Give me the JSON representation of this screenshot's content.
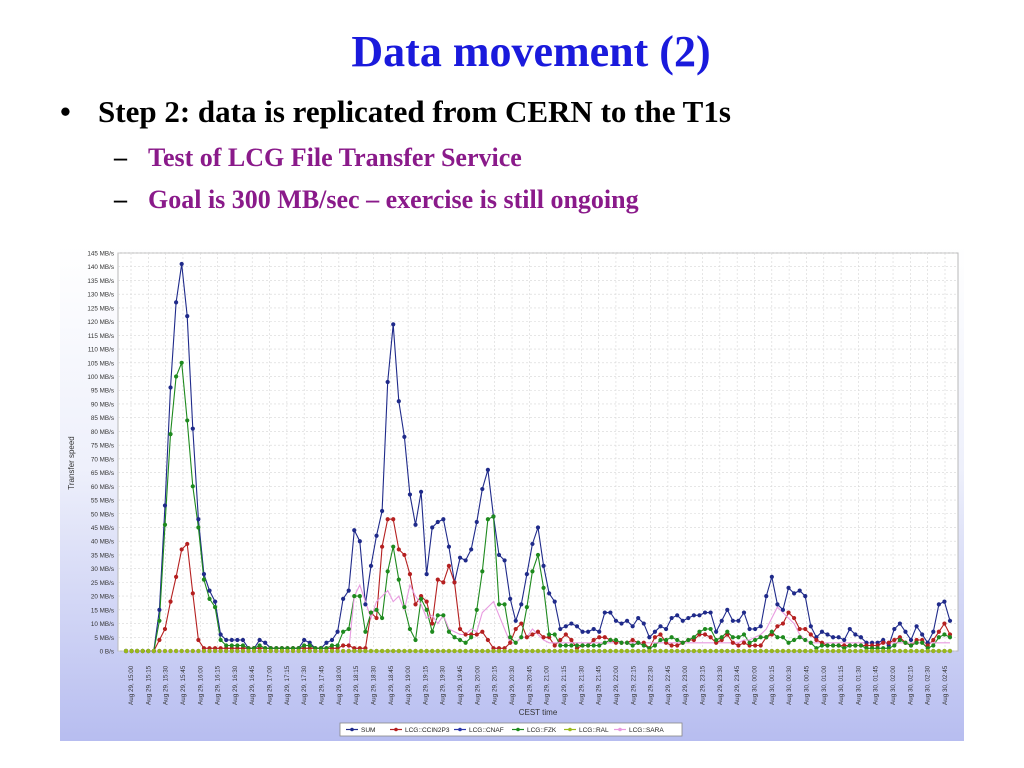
{
  "slide": {
    "title": "Data movement (2)",
    "bullet_marker": "•",
    "bullet": "Step 2: data is replicated from CERN to the T1s",
    "sub_marker": "–",
    "sub_items": [
      "Test of LCG File Transfer Service",
      "Goal is 300 MB/sec – exercise is still ongoing"
    ]
  },
  "chart_data": {
    "type": "line",
    "ylabel": "Transfer speed",
    "xlabel": "CEST time",
    "ylim": [
      0,
      145
    ],
    "y_unit": "MB/s",
    "y_ticks": [
      0,
      5,
      10,
      15,
      20,
      25,
      30,
      35,
      40,
      45,
      50,
      55,
      60,
      65,
      70,
      75,
      80,
      85,
      90,
      95,
      100,
      105,
      110,
      115,
      120,
      125,
      130,
      135,
      140,
      145
    ],
    "y_tick_labels": [
      "0 B/s",
      "5 MB/s",
      "10 MB/s",
      "15 MB/s",
      "20 MB/s",
      "25 MB/s",
      "30 MB/s",
      "35 MB/s",
      "40 MB/s",
      "45 MB/s",
      "50 MB/s",
      "55 MB/s",
      "60 MB/s",
      "65 MB/s",
      "70 MB/s",
      "75 MB/s",
      "80 MB/s",
      "85 MB/s",
      "90 MB/s",
      "95 MB/s",
      "100 MB/s",
      "105 MB/s",
      "110 MB/s",
      "115 MB/s",
      "120 MB/s",
      "125 MB/s",
      "130 MB/s",
      "135 MB/s",
      "140 MB/s",
      "145 MB/s"
    ],
    "x_tick_labels": [
      "Aug 29, 15:00",
      "Aug 29, 15:15",
      "Aug 29, 15:30",
      "Aug 29, 15:45",
      "Aug 29, 16:00",
      "Aug 29, 16:15",
      "Aug 29, 16:30",
      "Aug 29, 16:45",
      "Aug 29, 17:00",
      "Aug 29, 17:15",
      "Aug 29, 17:30",
      "Aug 29, 17:45",
      "Aug 29, 18:00",
      "Aug 29, 18:15",
      "Aug 29, 18:30",
      "Aug 29, 18:45",
      "Aug 29, 19:00",
      "Aug 29, 19:15",
      "Aug 29, 19:30",
      "Aug 29, 19:45",
      "Aug 29, 20:00",
      "Aug 29, 20:15",
      "Aug 29, 20:30",
      "Aug 29, 20:45",
      "Aug 29, 21:00",
      "Aug 29, 21:15",
      "Aug 29, 21:30",
      "Aug 29, 21:45",
      "Aug 29, 22:00",
      "Aug 29, 22:15",
      "Aug 29, 22:30",
      "Aug 29, 22:45",
      "Aug 29, 23:00",
      "Aug 29, 23:15",
      "Aug 29, 23:30",
      "Aug 29, 23:45",
      "Aug 30, 00:00",
      "Aug 30, 00:15",
      "Aug 30, 00:30",
      "Aug 30, 00:45",
      "Aug 30, 01:00",
      "Aug 30, 01:15",
      "Aug 30, 01:30",
      "Aug 30, 01:45",
      "Aug 30, 02:00",
      "Aug 30, 02:15",
      "Aug 30, 02:30",
      "Aug 30, 02:45"
    ],
    "grid": true,
    "legend_position": "bottom",
    "series": [
      {
        "name": "SUM",
        "color": "#1f2a8a",
        "values": [
          0,
          0,
          0,
          0,
          0,
          0,
          15,
          53,
          96,
          127,
          141,
          122,
          81,
          48,
          28,
          22,
          18,
          6,
          4,
          4,
          4,
          4,
          1,
          1,
          4,
          3,
          1,
          1,
          1,
          1,
          1,
          1,
          4,
          3,
          1,
          1,
          3,
          4,
          7,
          19,
          22,
          44,
          40,
          17,
          31,
          42,
          51,
          98,
          119,
          91,
          78,
          57,
          46,
          58,
          28,
          45,
          47,
          48,
          38,
          25,
          34,
          33,
          37,
          47,
          59,
          66,
          49,
          35,
          33,
          19,
          11,
          17,
          28,
          39,
          45,
          31,
          21,
          18,
          8,
          9,
          10,
          9,
          7,
          7,
          8,
          7,
          14,
          14,
          11,
          10,
          11,
          9,
          12,
          10,
          5,
          7,
          9,
          8,
          12,
          13,
          11,
          12,
          13,
          13,
          14,
          14,
          7,
          11,
          15,
          11,
          11,
          14,
          8,
          8,
          9,
          20,
          27,
          17,
          15,
          23,
          21,
          22,
          20,
          9,
          5,
          7,
          6,
          5,
          5,
          4,
          8,
          6,
          5,
          3,
          3,
          3,
          4,
          2,
          8,
          10,
          7,
          4,
          9,
          6,
          3,
          7,
          17,
          18,
          11
        ],
        "markers": true
      },
      {
        "name": "LCG::CCIN2P3",
        "color": "#b52020",
        "values": [
          0,
          0,
          0,
          0,
          0,
          0,
          4,
          8,
          18,
          27,
          37,
          39,
          21,
          4,
          1,
          1,
          1,
          1,
          1,
          1,
          1,
          1,
          1,
          1,
          1,
          1,
          1,
          1,
          1,
          1,
          1,
          1,
          1,
          1,
          1,
          1,
          1,
          1,
          1,
          2,
          2,
          1,
          1,
          1,
          14,
          12,
          38,
          48,
          48,
          37,
          35,
          28,
          17,
          20,
          18,
          10,
          26,
          25,
          31,
          25,
          8,
          6,
          6,
          6,
          7,
          4,
          1,
          1,
          1,
          3,
          8,
          10,
          5,
          6,
          7,
          5,
          5,
          2,
          4,
          6,
          4,
          1,
          2,
          2,
          4,
          5,
          5,
          4,
          3,
          3,
          3,
          4,
          3,
          3,
          1,
          5,
          6,
          3,
          2,
          2,
          3,
          4,
          4,
          6,
          6,
          5,
          3,
          4,
          6,
          3,
          2,
          3,
          2,
          2,
          2,
          5,
          6,
          9,
          10,
          14,
          12,
          8,
          8,
          6,
          4,
          3,
          2,
          2,
          2,
          2,
          2,
          2,
          2,
          2,
          2,
          2,
          3,
          3,
          4,
          5,
          3,
          2,
          4,
          4,
          2,
          4,
          7,
          10,
          6
        ],
        "markers": true
      },
      {
        "name": "LCG::CNAF",
        "color": "#2a36a8",
        "values": [
          0,
          0,
          0,
          0,
          0,
          0,
          0,
          0,
          0,
          0,
          0,
          0,
          0,
          0,
          0,
          0,
          0,
          0,
          0,
          0,
          0,
          0,
          0,
          0,
          0,
          0,
          0,
          0,
          0,
          0,
          0,
          0,
          0,
          0,
          0,
          0,
          0,
          0,
          0,
          0,
          0,
          0,
          0,
          0,
          0,
          0,
          0,
          0,
          0,
          0,
          0,
          0,
          0,
          0,
          0,
          0,
          0,
          0,
          0,
          0,
          0,
          0,
          0,
          0,
          0,
          0,
          0,
          0,
          0,
          0,
          0,
          0,
          0,
          0,
          0,
          0,
          0,
          0,
          0,
          0,
          0,
          0,
          0,
          0,
          0,
          0,
          0,
          0,
          0,
          0,
          0,
          0,
          0,
          0,
          0,
          0,
          0,
          0,
          0,
          0,
          0,
          0,
          0,
          0,
          0,
          0,
          0,
          0,
          0,
          0,
          0,
          0,
          0,
          0,
          0,
          0,
          0,
          0,
          0,
          0,
          0,
          0,
          0,
          0,
          0,
          0,
          0,
          0,
          0,
          0,
          0,
          0,
          0,
          0,
          0,
          0,
          0,
          0,
          0,
          0,
          0,
          0,
          0,
          0,
          0,
          0,
          0,
          0,
          0
        ],
        "markers": true
      },
      {
        "name": "LCG::FZK",
        "color": "#1e8a1e",
        "values": [
          0,
          0,
          0,
          0,
          0,
          0,
          11,
          46,
          79,
          100,
          105,
          84,
          60,
          45,
          26,
          19,
          16,
          4,
          2,
          2,
          2,
          2,
          1,
          1,
          2,
          1,
          1,
          1,
          1,
          1,
          1,
          1,
          2,
          2,
          1,
          1,
          1,
          2,
          2,
          7,
          8,
          20,
          20,
          7,
          14,
          15,
          12,
          29,
          38,
          26,
          16,
          8,
          4,
          19,
          15,
          7,
          13,
          13,
          7,
          5,
          4,
          3,
          5,
          15,
          29,
          48,
          49,
          17,
          17,
          5,
          3,
          5,
          16,
          29,
          35,
          23,
          6,
          6,
          2,
          2,
          2,
          2,
          2,
          2,
          2,
          2,
          3,
          4,
          4,
          3,
          3,
          2,
          3,
          2,
          1,
          2,
          4,
          4,
          5,
          4,
          3,
          4,
          5,
          7,
          8,
          8,
          4,
          5,
          7,
          5,
          5,
          6,
          3,
          4,
          5,
          5,
          7,
          5,
          5,
          3,
          4,
          5,
          4,
          3,
          1,
          2,
          2,
          2,
          2,
          1,
          2,
          2,
          2,
          1,
          1,
          1,
          1,
          1,
          2,
          4,
          3,
          2,
          3,
          3,
          1,
          2,
          5,
          6,
          5
        ],
        "markers": true
      },
      {
        "name": "LCG::RAL",
        "color": "#9ab81c",
        "values": [
          0,
          0,
          0,
          0,
          0,
          0,
          0,
          0,
          0,
          0,
          0,
          0,
          0,
          0,
          0,
          0,
          0,
          0,
          0,
          0,
          0,
          0,
          0,
          0,
          0,
          0,
          0,
          0,
          0,
          0,
          0,
          0,
          0,
          0,
          0,
          0,
          0,
          0,
          0,
          0,
          0,
          0,
          0,
          0,
          0,
          0,
          0,
          0,
          0,
          0,
          0,
          0,
          0,
          0,
          0,
          0,
          0,
          0,
          0,
          0,
          0,
          0,
          0,
          0,
          0,
          0,
          0,
          0,
          0,
          0,
          0,
          0,
          0,
          0,
          0,
          0,
          0,
          0,
          0,
          0,
          0,
          0,
          0,
          0,
          0,
          0,
          0,
          0,
          0,
          0,
          0,
          0,
          0,
          0,
          0,
          0,
          0,
          0,
          0,
          0,
          0,
          0,
          0,
          0,
          0,
          0,
          0,
          0,
          0,
          0,
          0,
          0,
          0,
          0,
          0,
          0,
          0,
          0,
          0,
          0,
          0,
          0,
          0,
          0,
          0,
          0,
          0,
          0,
          0,
          0,
          0,
          0,
          0,
          0,
          0,
          0,
          0,
          0,
          0,
          0,
          0,
          0,
          0,
          0,
          0,
          0,
          0,
          0,
          0
        ],
        "markers": true
      },
      {
        "name": "LCG::SARA",
        "color": "#e89be0",
        "values": [
          0,
          0,
          0,
          0,
          0,
          0,
          0,
          0,
          0,
          0,
          0,
          0,
          0,
          0,
          0,
          0,
          0,
          0,
          0,
          0,
          0,
          0,
          0,
          0,
          0,
          0,
          0,
          0,
          0,
          0,
          0,
          0,
          0,
          0,
          0,
          0,
          0,
          0,
          0,
          0,
          0,
          20,
          24,
          18,
          12,
          18,
          20,
          22,
          18,
          20,
          15,
          24,
          20,
          17,
          12,
          13,
          10,
          13,
          8,
          7,
          6,
          6,
          8,
          7,
          14,
          16,
          18,
          13,
          8,
          3,
          3,
          5,
          5,
          8,
          6,
          4,
          3,
          3,
          3,
          3,
          3,
          3,
          3,
          3,
          3,
          3,
          3,
          3,
          3,
          3,
          3,
          3,
          3,
          3,
          3,
          3,
          3,
          3,
          3,
          3,
          3,
          3,
          3,
          3,
          3,
          3,
          3,
          3,
          3,
          3,
          3,
          4,
          4,
          5,
          6,
          8,
          12,
          16,
          14,
          12,
          10,
          6,
          4,
          3,
          3,
          3,
          3,
          3,
          3,
          3,
          3,
          3,
          3,
          3,
          3,
          3,
          3,
          3,
          3,
          3,
          3,
          3,
          3,
          3,
          3,
          3,
          3,
          3,
          3
        ],
        "markers": false
      }
    ]
  }
}
